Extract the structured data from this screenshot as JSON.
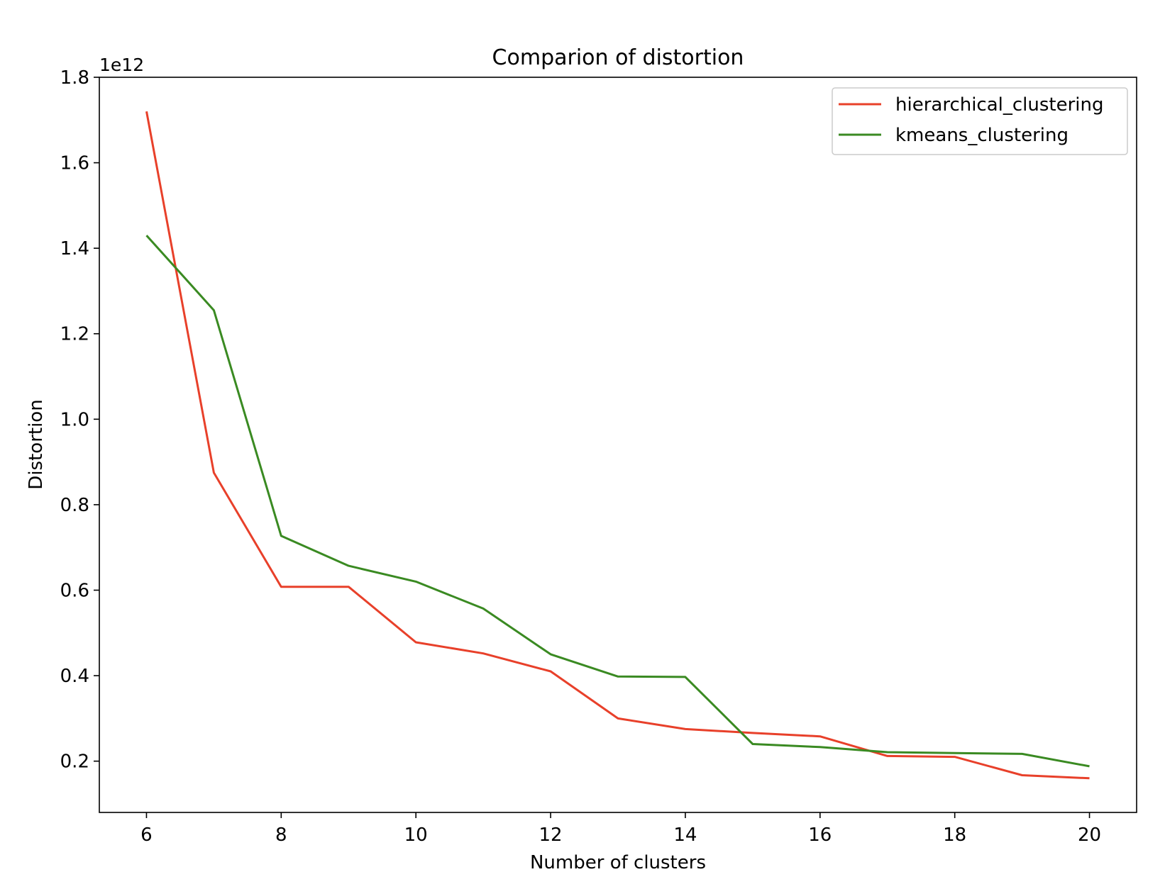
{
  "chart_data": {
    "type": "line",
    "title": "Comparion of distortion",
    "xlabel": "Number of clusters",
    "ylabel": "Distortion",
    "y_offset_label": "1e12",
    "x": [
      6,
      7,
      8,
      9,
      10,
      11,
      12,
      13,
      14,
      15,
      16,
      17,
      18,
      19,
      20
    ],
    "xlim": [
      5.3,
      20.7
    ],
    "ylim": [
      0.08,
      1.8
    ],
    "x_ticks": [
      6,
      8,
      10,
      12,
      14,
      16,
      18,
      20
    ],
    "y_ticks": [
      0.2,
      0.4,
      0.6,
      0.8,
      1.0,
      1.2,
      1.4,
      1.6,
      1.8
    ],
    "y_tick_labels": [
      "0.2",
      "0.4",
      "0.6",
      "0.8",
      "1.0",
      "1.2",
      "1.4",
      "1.6",
      "1.8"
    ],
    "grid": false,
    "legend_position": "top-right",
    "series": [
      {
        "name": "hierarchical_clustering",
        "color": "#e8402a",
        "values": [
          1.72,
          0.875,
          0.608,
          0.608,
          0.478,
          0.452,
          0.41,
          0.3,
          0.275,
          0.266,
          0.258,
          0.212,
          0.21,
          0.167,
          0.16
        ]
      },
      {
        "name": "kmeans_clustering",
        "color": "#3a8a22",
        "values": [
          1.43,
          1.255,
          0.727,
          0.657,
          0.62,
          0.557,
          0.45,
          0.398,
          0.397,
          0.24,
          0.233,
          0.221,
          0.219,
          0.217,
          0.188
        ]
      }
    ]
  }
}
